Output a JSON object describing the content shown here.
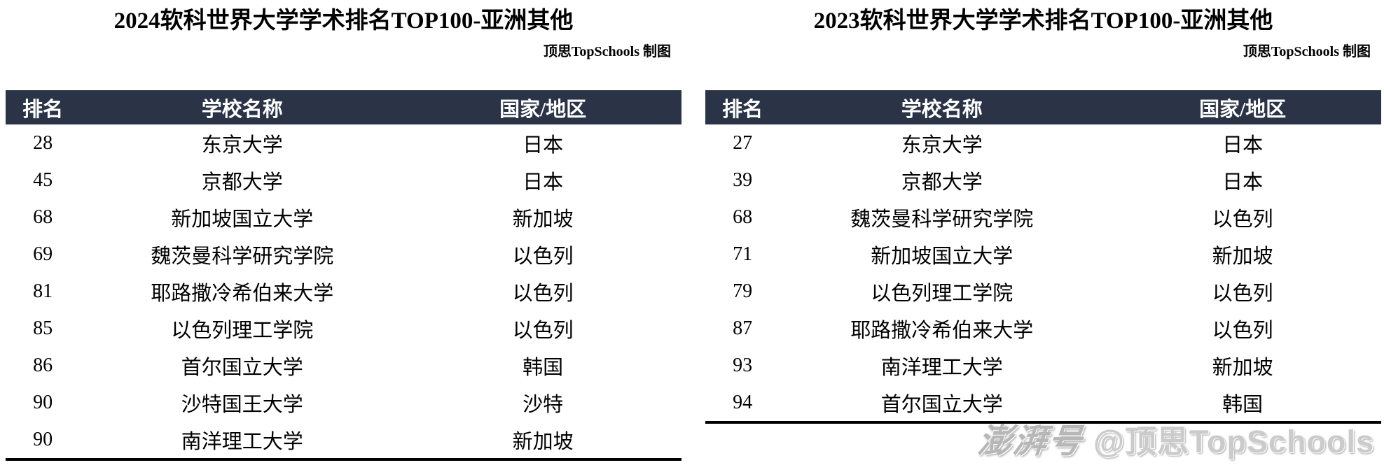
{
  "colors": {
    "header_bg": "#2b3447",
    "header_text": "#ffffff",
    "body_text": "#000000",
    "table_bottom_border": "#000000",
    "watermark_gray": "#c9c9c9"
  },
  "watermark": {
    "logo": "澎湃号",
    "handle": "@顶思TopSchools"
  },
  "chart_data": [
    {
      "type": "table",
      "title": "2024软科世界大学学术排名TOP100-亚洲其他",
      "credit": "顶思TopSchools 制图",
      "columns": [
        "排名",
        "学校名称",
        "国家/地区"
      ],
      "rows": [
        [
          "28",
          "东京大学",
          "日本"
        ],
        [
          "45",
          "京都大学",
          "日本"
        ],
        [
          "68",
          "新加坡国立大学",
          "新加坡"
        ],
        [
          "69",
          "魏茨曼科学研究学院",
          "以色列"
        ],
        [
          "81",
          "耶路撒冷希伯来大学",
          "以色列"
        ],
        [
          "85",
          "以色列理工学院",
          "以色列"
        ],
        [
          "86",
          "首尔国立大学",
          "韩国"
        ],
        [
          "90",
          "沙特国王大学",
          "沙特"
        ],
        [
          "90",
          "南洋理工大学",
          "新加坡"
        ]
      ]
    },
    {
      "type": "table",
      "title": "2023软科世界大学学术排名TOP100-亚洲其他",
      "credit": "顶思TopSchools 制图",
      "columns": [
        "排名",
        "学校名称",
        "国家/地区"
      ],
      "rows": [
        [
          "27",
          "东京大学",
          "日本"
        ],
        [
          "39",
          "京都大学",
          "日本"
        ],
        [
          "68",
          "魏茨曼科学研究学院",
          "以色列"
        ],
        [
          "71",
          "新加坡国立大学",
          "新加坡"
        ],
        [
          "79",
          "以色列理工学院",
          "以色列"
        ],
        [
          "87",
          "耶路撒冷希伯来大学",
          "以色列"
        ],
        [
          "93",
          "南洋理工大学",
          "新加坡"
        ],
        [
          "94",
          "首尔国立大学",
          "韩国"
        ]
      ]
    }
  ]
}
